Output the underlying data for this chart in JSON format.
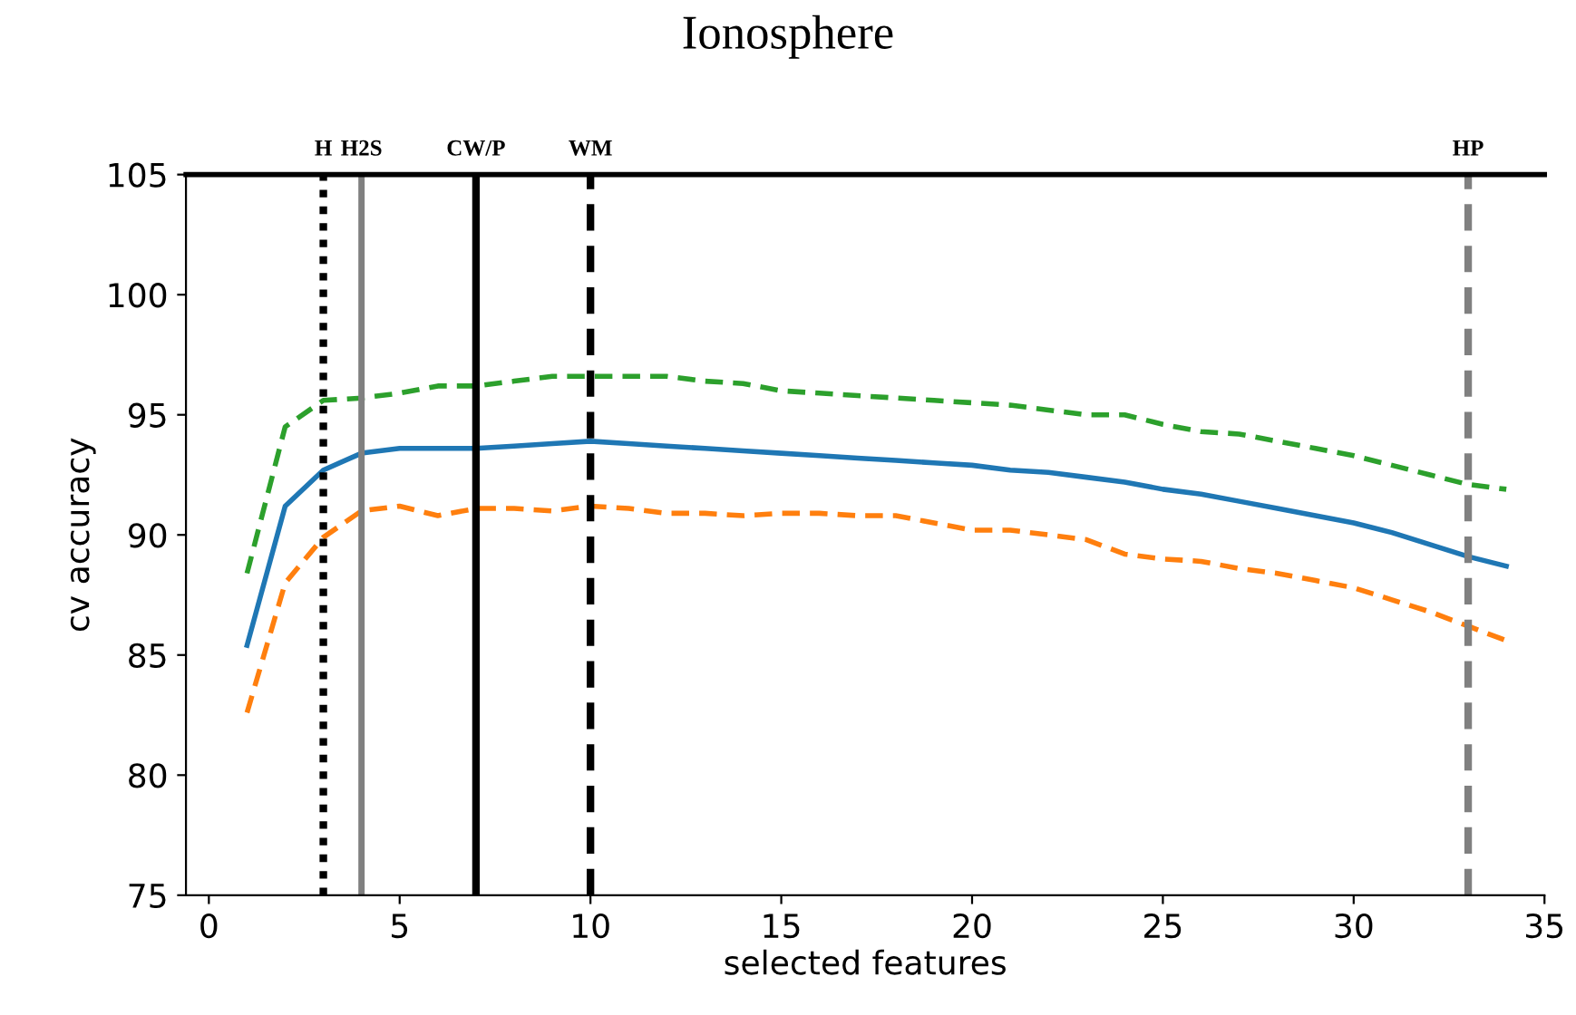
{
  "chart_data": {
    "type": "line",
    "title": "Ionosphere",
    "xlabel": "selected features",
    "ylabel": "cv accuracy",
    "x": [
      1,
      2,
      3,
      4,
      5,
      6,
      7,
      8,
      9,
      10,
      11,
      12,
      13,
      14,
      15,
      16,
      17,
      18,
      19,
      20,
      21,
      22,
      23,
      24,
      25,
      26,
      27,
      28,
      29,
      30,
      31,
      32,
      33,
      34
    ],
    "series": [
      {
        "color": "#2ca02c",
        "line_style": "dashed",
        "values": [
          88.4,
          94.5,
          95.6,
          95.7,
          95.9,
          96.2,
          96.2,
          96.4,
          96.6,
          96.6,
          96.6,
          96.6,
          96.4,
          96.3,
          96.0,
          95.9,
          95.8,
          95.7,
          95.6,
          95.5,
          95.4,
          95.2,
          95.0,
          95.0,
          94.6,
          94.3,
          94.2,
          93.9,
          93.6,
          93.3,
          92.9,
          92.5,
          92.1,
          91.9
        ]
      },
      {
        "color": "#1f77b4",
        "line_style": "solid",
        "values": [
          85.4,
          91.2,
          92.7,
          93.4,
          93.6,
          93.6,
          93.6,
          93.7,
          93.8,
          93.9,
          93.8,
          93.7,
          93.6,
          93.5,
          93.4,
          93.3,
          93.2,
          93.1,
          93.0,
          92.9,
          92.7,
          92.6,
          92.4,
          92.2,
          91.9,
          91.7,
          91.4,
          91.1,
          90.8,
          90.5,
          90.1,
          89.6,
          89.1,
          88.7
        ]
      },
      {
        "color": "#ff7f0e",
        "line_style": "dashed",
        "values": [
          82.6,
          88.0,
          89.9,
          91.0,
          91.2,
          90.8,
          91.1,
          91.1,
          91.0,
          91.2,
          91.1,
          90.9,
          90.9,
          90.8,
          90.9,
          90.9,
          90.8,
          90.8,
          90.5,
          90.2,
          90.2,
          90.0,
          89.8,
          89.2,
          89.0,
          88.9,
          88.6,
          88.4,
          88.1,
          87.8,
          87.3,
          86.8,
          86.2,
          85.6
        ]
      }
    ],
    "xlim": [
      -0.6,
      35
    ],
    "xticks": [
      0,
      5,
      10,
      15,
      20,
      25,
      30,
      35
    ],
    "ylim": [
      75,
      105
    ],
    "yticks": [
      75,
      80,
      85,
      90,
      95,
      100,
      105
    ],
    "ref_lines": [
      {
        "axis": "x",
        "value": 3,
        "label": "H",
        "color": "#000000",
        "line_style": "dotted"
      },
      {
        "axis": "x",
        "value": 4,
        "label": "H2S",
        "color": "#808080",
        "line_style": "solid"
      },
      {
        "axis": "x",
        "value": 7,
        "label": "CW/P",
        "color": "#000000",
        "line_style": "solid"
      },
      {
        "axis": "x",
        "value": 10,
        "label": "WM",
        "color": "#000000",
        "line_style": "dashed"
      },
      {
        "axis": "x",
        "value": 33,
        "label": "HP",
        "color": "#808080",
        "line_style": "dashed"
      }
    ],
    "grid": false,
    "marker": "none"
  }
}
